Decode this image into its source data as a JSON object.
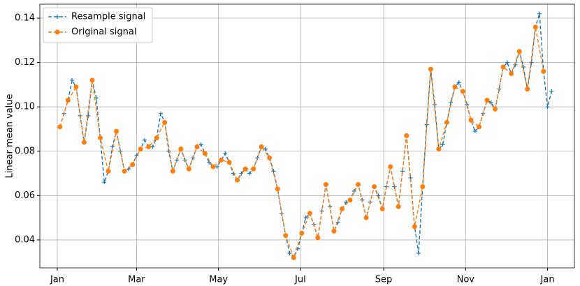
{
  "chart_data": {
    "type": "line",
    "ylabel": "Linear mean value",
    "xlim": [
      -13,
      385
    ],
    "ylim": [
      0.0274,
      0.1463
    ],
    "xticks": [
      {
        "value": 0,
        "label": "Jan"
      },
      {
        "value": 59,
        "label": "Mar"
      },
      {
        "value": 120,
        "label": "May"
      },
      {
        "value": 181,
        "label": "Jul"
      },
      {
        "value": 243,
        "label": "Sep"
      },
      {
        "value": 304,
        "label": "Nov"
      },
      {
        "value": 365,
        "label": "Jan"
      }
    ],
    "yticks": [
      0.04,
      0.06,
      0.08,
      {
        "value": 0.1,
        "label": "0.10"
      },
      0.12,
      0.14
    ],
    "grid": true,
    "legend": "upper-left",
    "series": [
      {
        "name": "Resample signal",
        "color": "#1f77b4",
        "marker": "plus",
        "x": [
          2,
          5,
          8,
          11,
          14,
          17,
          20,
          23,
          26,
          29,
          32,
          35,
          38,
          41,
          44,
          47,
          50,
          53,
          56,
          59,
          62,
          65,
          68,
          71,
          74,
          77,
          80,
          83,
          86,
          89,
          92,
          95,
          98,
          101,
          104,
          107,
          110,
          113,
          116,
          119,
          122,
          125,
          128,
          131,
          134,
          137,
          140,
          143,
          146,
          149,
          152,
          155,
          158,
          161,
          164,
          167,
          170,
          173,
          176,
          179,
          182,
          185,
          188,
          191,
          194,
          197,
          200,
          203,
          206,
          209,
          212,
          215,
          218,
          221,
          224,
          227,
          230,
          233,
          236,
          239,
          242,
          245,
          248,
          251,
          254,
          257,
          260,
          263,
          266,
          269,
          272,
          275,
          278,
          281,
          284,
          287,
          290,
          293,
          296,
          299,
          302,
          305,
          308,
          311,
          314,
          317,
          320,
          323,
          326,
          329,
          332,
          335,
          338,
          341,
          344,
          347,
          350,
          353,
          356,
          359,
          362,
          365,
          368
        ],
        "values": [
          0.091,
          0.097,
          0.103,
          0.112,
          0.109,
          0.096,
          0.084,
          0.096,
          0.112,
          0.104,
          0.086,
          0.066,
          0.071,
          0.082,
          0.089,
          0.08,
          0.071,
          0.072,
          0.074,
          0.078,
          0.081,
          0.085,
          0.082,
          0.082,
          0.086,
          0.097,
          0.093,
          0.08,
          0.071,
          0.076,
          0.081,
          0.076,
          0.072,
          0.077,
          0.082,
          0.083,
          0.079,
          0.075,
          0.073,
          0.073,
          0.076,
          0.079,
          0.075,
          0.07,
          0.067,
          0.07,
          0.072,
          0.07,
          0.072,
          0.077,
          0.082,
          0.081,
          0.077,
          0.071,
          0.063,
          0.052,
          0.042,
          0.034,
          0.032,
          0.036,
          0.043,
          0.05,
          0.052,
          0.047,
          0.041,
          0.053,
          0.065,
          0.055,
          0.044,
          0.048,
          0.054,
          0.057,
          0.058,
          0.062,
          0.065,
          0.058,
          0.05,
          0.057,
          0.064,
          0.06,
          0.054,
          0.064,
          0.073,
          0.064,
          0.055,
          0.071,
          0.087,
          0.068,
          0.046,
          0.034,
          0.064,
          0.092,
          0.117,
          0.101,
          0.081,
          0.083,
          0.093,
          0.102,
          0.109,
          0.111,
          0.107,
          0.101,
          0.094,
          0.089,
          0.091,
          0.097,
          0.103,
          0.102,
          0.099,
          0.108,
          0.118,
          0.12,
          0.115,
          0.119,
          0.125,
          0.118,
          0.108,
          0.12,
          0.136,
          0.142,
          0.116,
          0.1,
          0.107
        ]
      },
      {
        "name": "Original signal",
        "color": "#ff7f0e",
        "marker": "circle",
        "x": [
          2,
          8,
          14,
          20,
          26,
          32,
          38,
          44,
          50,
          56,
          62,
          68,
          74,
          80,
          86,
          92,
          98,
          104,
          110,
          116,
          122,
          128,
          134,
          140,
          146,
          152,
          158,
          164,
          170,
          176,
          182,
          188,
          194,
          200,
          206,
          212,
          218,
          224,
          230,
          236,
          242,
          248,
          254,
          260,
          266,
          272,
          278,
          284,
          290,
          296,
          302,
          308,
          314,
          320,
          326,
          332,
          338,
          344,
          350,
          356,
          362
        ],
        "values": [
          0.091,
          0.103,
          0.109,
          0.084,
          0.112,
          0.086,
          0.071,
          0.089,
          0.071,
          0.074,
          0.081,
          0.082,
          0.086,
          0.093,
          0.071,
          0.081,
          0.072,
          0.082,
          0.079,
          0.073,
          0.076,
          0.075,
          0.067,
          0.072,
          0.072,
          0.082,
          0.077,
          0.063,
          0.042,
          0.032,
          0.043,
          0.052,
          0.041,
          0.065,
          0.044,
          0.054,
          0.058,
          0.065,
          0.05,
          0.064,
          0.054,
          0.073,
          0.055,
          0.087,
          0.046,
          0.064,
          0.117,
          0.081,
          0.093,
          0.109,
          0.107,
          0.094,
          0.091,
          0.103,
          0.099,
          0.118,
          0.115,
          0.125,
          0.108,
          0.136,
          0.116
        ]
      }
    ]
  }
}
